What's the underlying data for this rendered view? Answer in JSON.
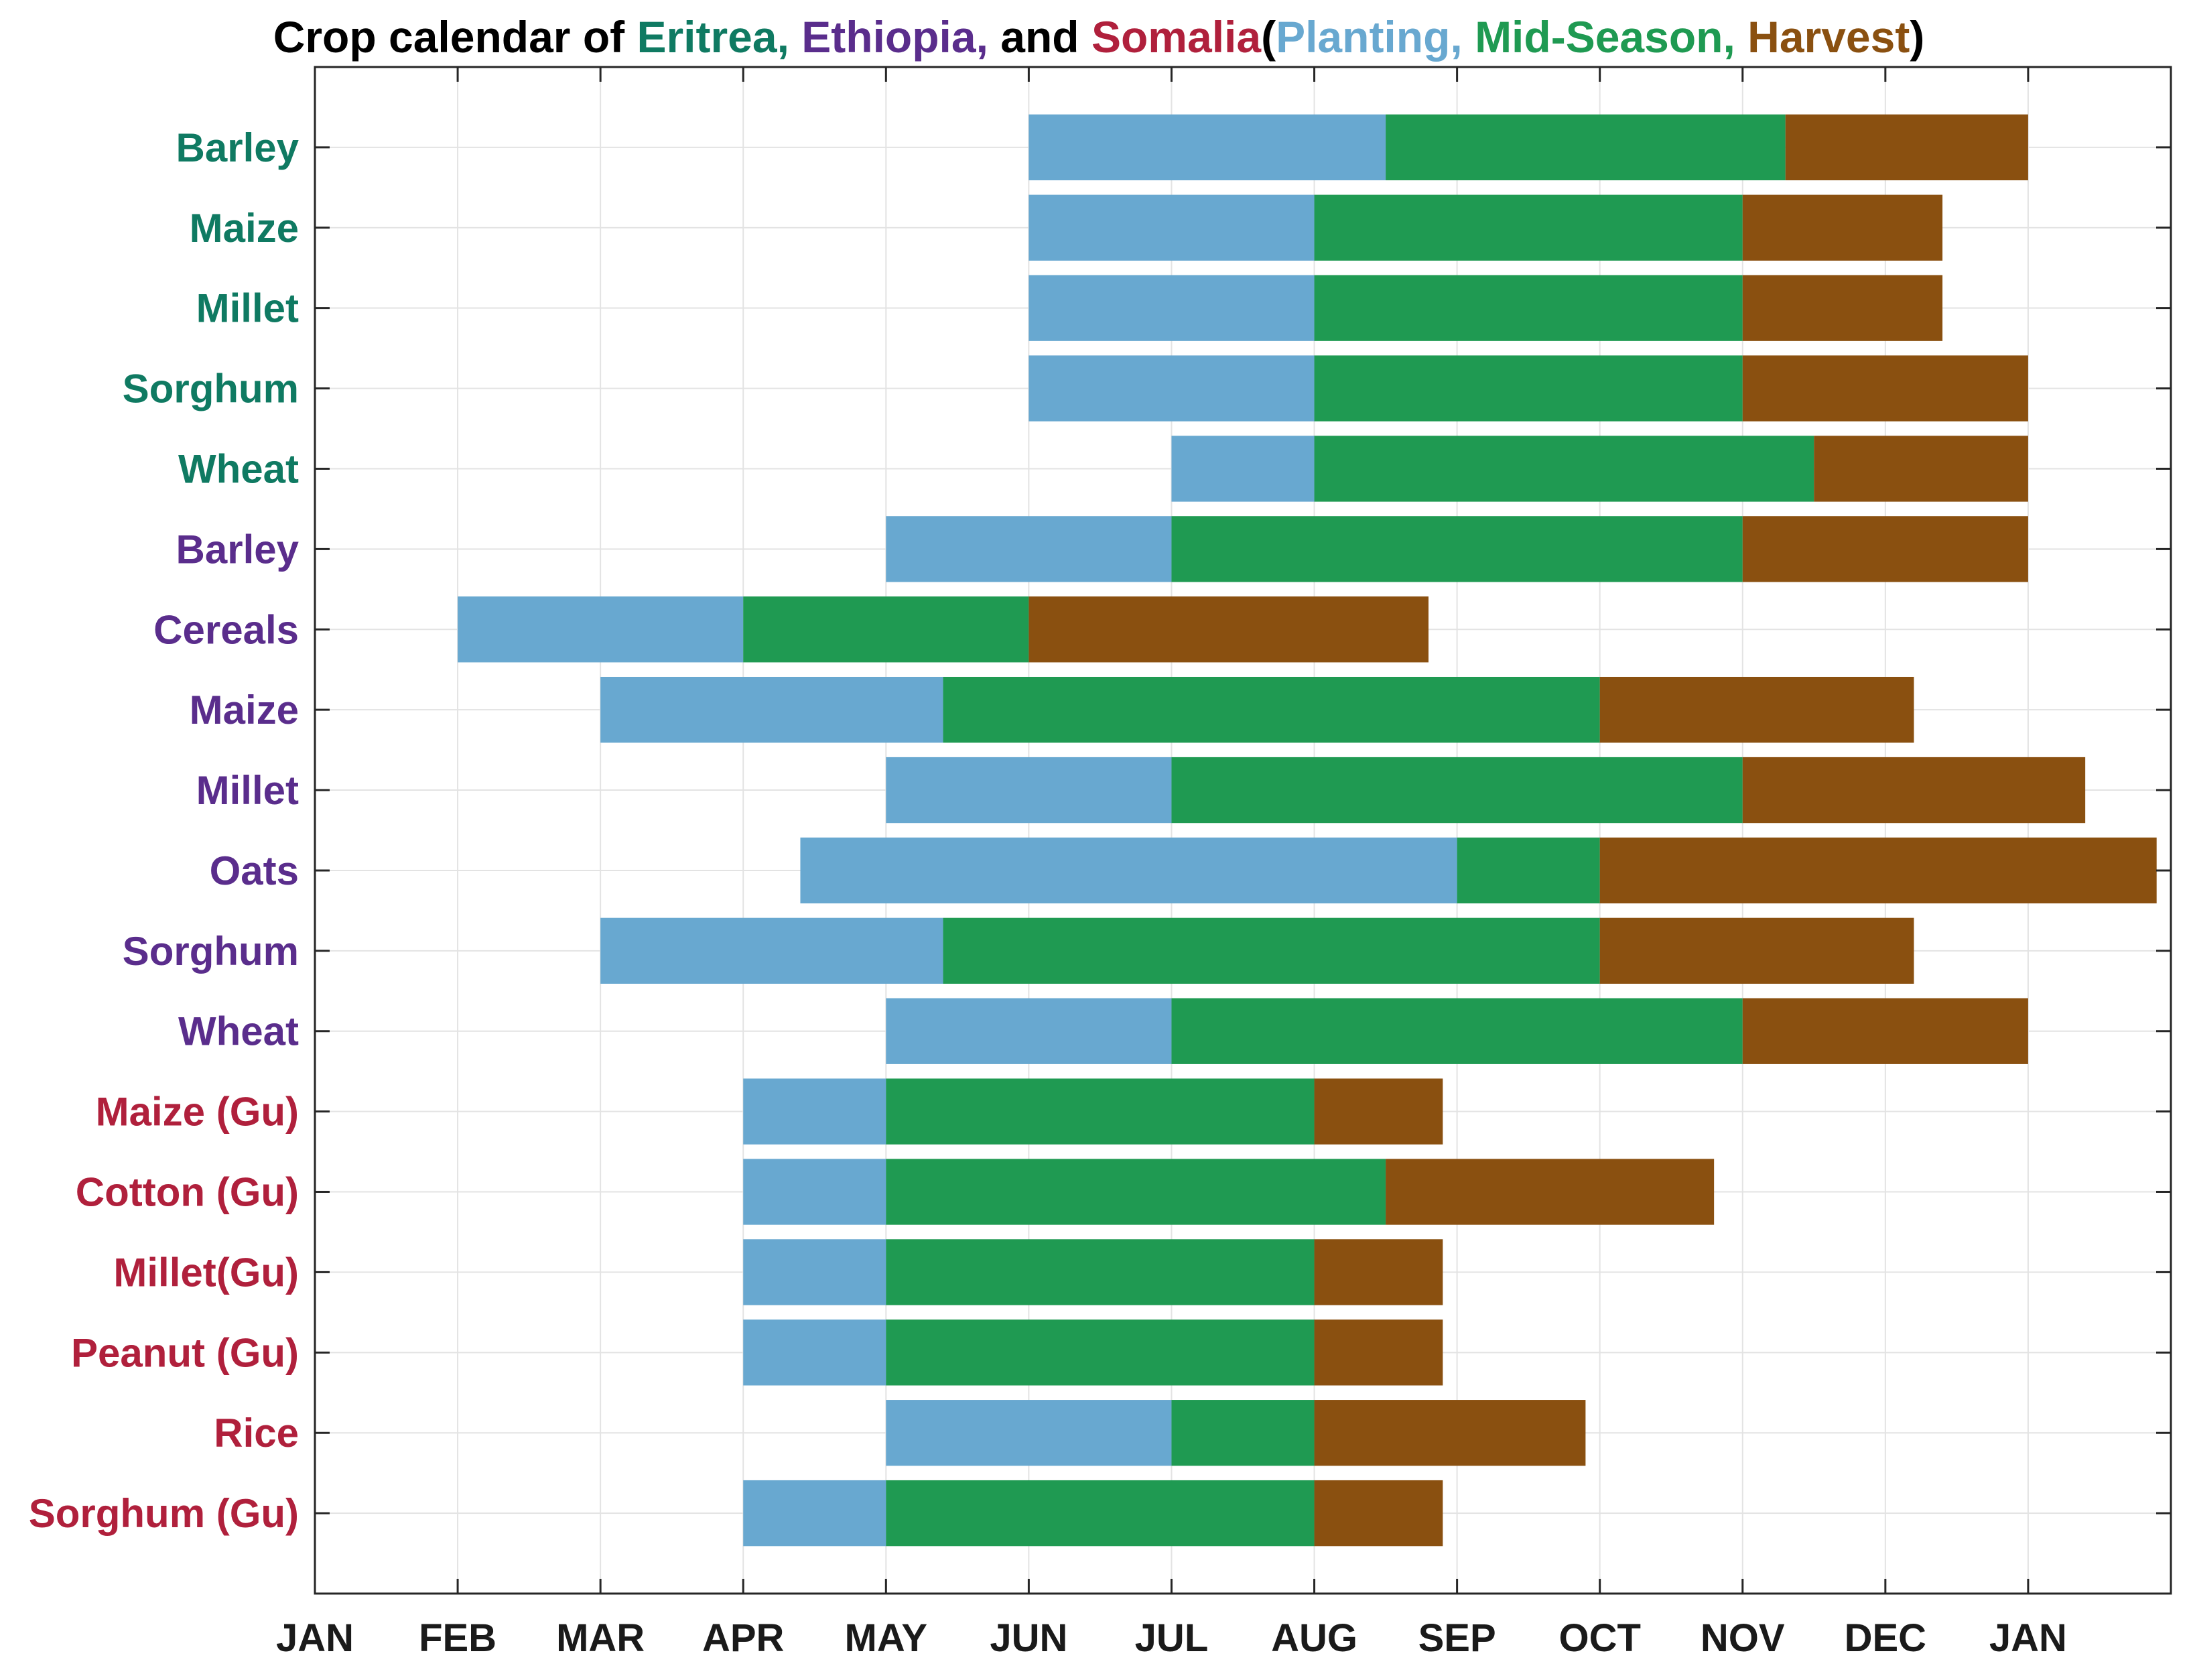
{
  "chart_data": {
    "type": "bar",
    "orientation": "horizontal",
    "stacked": true,
    "title": "Crop calendar of Eritrea, Ethiopia, and Somalia(Planting, Mid-Season, Harvest)",
    "title_parts": [
      {
        "text": "Crop calendar of ",
        "color": "#000000"
      },
      {
        "text": "Eritrea",
        "color": "#0f7a62"
      },
      {
        "text": ", ",
        "color": "#0f7a62"
      },
      {
        "text": "Ethiopia",
        "color": "#5a2d8c"
      },
      {
        "text": ", ",
        "color": "#5a2d8c"
      },
      {
        "text": "and ",
        "color": "#000000"
      },
      {
        "text": "Somalia",
        "color": "#b0203c"
      },
      {
        "text": "(",
        "color": "#000000"
      },
      {
        "text": "Planting",
        "color": "#68a8d0"
      },
      {
        "text": ", ",
        "color": "#68a8d0"
      },
      {
        "text": "Mid-Season",
        "color": "#1f9a52"
      },
      {
        "text": ", ",
        "color": "#1f9a52"
      },
      {
        "text": "Harvest",
        "color": "#8a5010"
      },
      {
        "text": ")",
        "color": "#000000"
      }
    ],
    "xlabel": "",
    "ylabel": "",
    "xlim": [
      0,
      13
    ],
    "x_ticks": [
      "JAN",
      "FEB",
      "MAR",
      "APR",
      "MAY",
      "JUN",
      "JUL",
      "AUG",
      "SEP",
      "OCT",
      "NOV",
      "DEC",
      "JAN"
    ],
    "x_units": "months from January 1 (0 = JAN)",
    "grid": true,
    "stage_colors": {
      "Planting": "#68a8d0",
      "Mid-Season": "#1f9a52",
      "Harvest": "#8a5010"
    },
    "country_colors": {
      "Eritrea": "#0f7a62",
      "Ethiopia": "#5a2d8c",
      "Somalia": "#b0203c"
    },
    "rows": [
      {
        "label": "Barley",
        "country": "Eritrea",
        "planting": [
          5,
          7.5
        ],
        "mid_season": [
          7.5,
          10.3
        ],
        "harvest": [
          10.3,
          12
        ]
      },
      {
        "label": "Maize",
        "country": "Eritrea",
        "planting": [
          5,
          7
        ],
        "mid_season": [
          7,
          10
        ],
        "harvest": [
          10,
          11.4
        ]
      },
      {
        "label": "Millet",
        "country": "Eritrea",
        "planting": [
          5,
          7
        ],
        "mid_season": [
          7,
          10
        ],
        "harvest": [
          10,
          11.4
        ]
      },
      {
        "label": "Sorghum",
        "country": "Eritrea",
        "planting": [
          5,
          7
        ],
        "mid_season": [
          7,
          10
        ],
        "harvest": [
          10,
          12
        ]
      },
      {
        "label": "Wheat",
        "country": "Eritrea",
        "planting": [
          6,
          7
        ],
        "mid_season": [
          7,
          10.5
        ],
        "harvest": [
          10.5,
          12
        ]
      },
      {
        "label": "Barley",
        "country": "Ethiopia",
        "planting": [
          4,
          6
        ],
        "mid_season": [
          6,
          10
        ],
        "harvest": [
          10,
          12
        ]
      },
      {
        "label": "Cereals",
        "country": "Ethiopia",
        "planting": [
          1,
          3
        ],
        "mid_season": [
          3,
          5
        ],
        "harvest": [
          5,
          7.8
        ]
      },
      {
        "label": "Maize",
        "country": "Ethiopia",
        "planting": [
          2,
          4.4
        ],
        "mid_season": [
          4.4,
          9
        ],
        "harvest": [
          9,
          11.2
        ]
      },
      {
        "label": "Millet",
        "country": "Ethiopia",
        "planting": [
          4,
          6
        ],
        "mid_season": [
          6,
          10
        ],
        "harvest": [
          10,
          12.4
        ]
      },
      {
        "label": "Oats",
        "country": "Ethiopia",
        "planting": [
          3.4,
          8
        ],
        "mid_season": [
          8,
          9
        ],
        "harvest": [
          9,
          12.9
        ]
      },
      {
        "label": "Sorghum",
        "country": "Ethiopia",
        "planting": [
          2,
          4.4
        ],
        "mid_season": [
          4.4,
          9
        ],
        "harvest": [
          9,
          11.2
        ]
      },
      {
        "label": "Wheat",
        "country": "Ethiopia",
        "planting": [
          4,
          6
        ],
        "mid_season": [
          6,
          10
        ],
        "harvest": [
          10,
          12
        ]
      },
      {
        "label": "Maize (Gu)",
        "country": "Somalia",
        "planting": [
          3,
          4
        ],
        "mid_season": [
          4,
          7
        ],
        "harvest": [
          7,
          7.9
        ]
      },
      {
        "label": "Cotton (Gu)",
        "country": "Somalia",
        "planting": [
          3,
          4
        ],
        "mid_season": [
          4,
          7.5
        ],
        "harvest": [
          7.5,
          9.8
        ]
      },
      {
        "label": "Millet(Gu)",
        "country": "Somalia",
        "planting": [
          3,
          4
        ],
        "mid_season": [
          4,
          7
        ],
        "harvest": [
          7,
          7.9
        ]
      },
      {
        "label": "Peanut (Gu)",
        "country": "Somalia",
        "planting": [
          3,
          4
        ],
        "mid_season": [
          4,
          7
        ],
        "harvest": [
          7,
          7.9
        ]
      },
      {
        "label": "Rice",
        "country": "Somalia",
        "planting": [
          4,
          6
        ],
        "mid_season": [
          6,
          7
        ],
        "harvest": [
          7,
          8.9
        ]
      },
      {
        "label": "Sorghum (Gu)",
        "country": "Somalia",
        "planting": [
          3,
          4
        ],
        "mid_season": [
          4,
          7
        ],
        "harvest": [
          7,
          7.9
        ]
      }
    ]
  }
}
